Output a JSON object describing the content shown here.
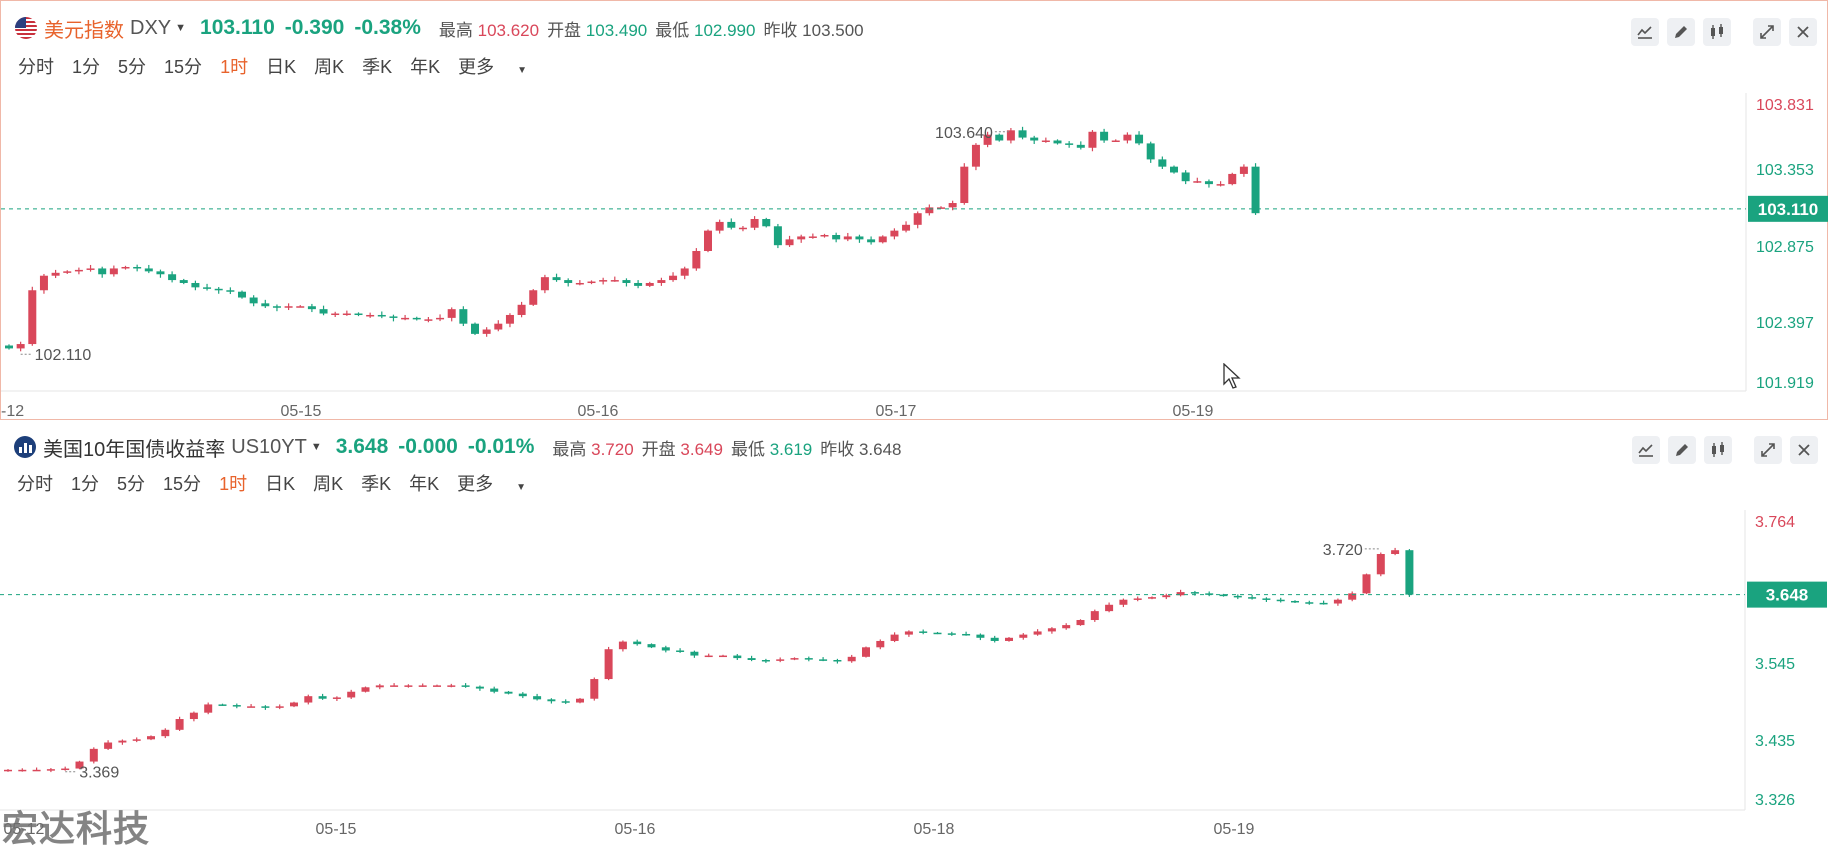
{
  "panels": [
    {
      "id": "dxy",
      "name": "美元指数",
      "code": "DXY",
      "price": "103.110",
      "change": "-0.390",
      "change_pct": "-0.38%",
      "stats": [
        {
          "label": "最高",
          "value": "103.620",
          "color": "red"
        },
        {
          "label": "开盘",
          "value": "103.490",
          "color": "green"
        },
        {
          "label": "最低",
          "value": "102.990",
          "color": "green"
        },
        {
          "label": "昨收",
          "value": "103.500",
          "color": "gray"
        }
      ]
    },
    {
      "id": "us10yt",
      "name": "美国10年国债收益率",
      "code": "US10YT",
      "price": "3.648",
      "change": "-0.000",
      "change_pct": "-0.01%",
      "stats": [
        {
          "label": "最高",
          "value": "3.720",
          "color": "red"
        },
        {
          "label": "开盘",
          "value": "3.649",
          "color": "red"
        },
        {
          "label": "最低",
          "value": "3.619",
          "color": "green"
        },
        {
          "label": "昨收",
          "value": "3.648",
          "color": "gray"
        }
      ]
    }
  ],
  "periods": [
    "分时",
    "1分",
    "5分",
    "15分",
    "1时",
    "日K",
    "周K",
    "季K",
    "年K",
    "更多"
  ],
  "active_period": "1时",
  "toolbar_icons": [
    "indicator-icon",
    "draw-pen-icon",
    "candle-type-icon",
    "expand-icon",
    "close-icon"
  ],
  "watermark": "宏达科技",
  "colors": {
    "up": "#d9475a",
    "down": "#1aa37f",
    "accent": "#e8632c",
    "grid": "#e6e6e6"
  },
  "chart_data": [
    {
      "type": "candlestick",
      "symbol": "DXY",
      "timeframe": "1时",
      "x_ticks": [
        "-12",
        "05-15",
        "05-16",
        "05-17",
        "05-19"
      ],
      "y_ticks": [
        "103.831",
        "103.353",
        "102.875",
        "102.397",
        "101.919"
      ],
      "y_range": [
        101.919,
        103.831
      ],
      "last_price": "103.110",
      "annotations": {
        "high": "103.640",
        "low": "102.110"
      },
      "closes": [
        102.15,
        102.18,
        102.55,
        102.65,
        102.67,
        102.68,
        102.69,
        102.7,
        102.66,
        102.7,
        102.71,
        102.7,
        102.68,
        102.66,
        102.62,
        102.6,
        102.57,
        102.56,
        102.55,
        102.54,
        102.5,
        102.46,
        102.44,
        102.43,
        102.44,
        102.44,
        102.42,
        102.39,
        102.39,
        102.39,
        102.38,
        102.38,
        102.37,
        102.36,
        102.36,
        102.35,
        102.35,
        102.36,
        102.42,
        102.32,
        102.25,
        102.28,
        102.32,
        102.38,
        102.45,
        102.55,
        102.64,
        102.62,
        102.6,
        102.6,
        102.61,
        102.62,
        102.62,
        102.6,
        102.58,
        102.6,
        102.62,
        102.65,
        102.7,
        102.82,
        102.96,
        103.02,
        102.98,
        102.98,
        103.04,
        102.99,
        102.86,
        102.9,
        102.92,
        102.92,
        102.93,
        102.9,
        102.92,
        102.9,
        102.88,
        102.92,
        102.96,
        103.0,
        103.08,
        103.12,
        103.12,
        103.15,
        103.4,
        103.55,
        103.62,
        103.58,
        103.65,
        103.6,
        103.58,
        103.58,
        103.56,
        103.55,
        103.53,
        103.64,
        103.58,
        103.58,
        103.62,
        103.56,
        103.45,
        103.4,
        103.36,
        103.3,
        103.3,
        103.28,
        103.28,
        103.35,
        103.4,
        103.08
      ],
      "notes": "hourly OHLC candles approximated from the image"
    },
    {
      "type": "candlestick",
      "symbol": "US10YT",
      "timeframe": "1时",
      "x_ticks": [
        "05-12",
        "05-15",
        "05-16",
        "05-18",
        "05-19"
      ],
      "y_ticks": [
        "3.764",
        "3.648",
        "3.545",
        "3.435",
        "3.326"
      ],
      "y_range": [
        3.326,
        3.764
      ],
      "last_price": "3.648",
      "annotations": {
        "high": "3.720",
        "low": "3.369"
      },
      "closes": [
        3.372,
        3.372,
        3.372,
        3.373,
        3.374,
        3.385,
        3.405,
        3.415,
        3.418,
        3.42,
        3.425,
        3.435,
        3.452,
        3.462,
        3.475,
        3.474,
        3.472,
        3.472,
        3.47,
        3.472,
        3.478,
        3.488,
        3.484,
        3.486,
        3.495,
        3.502,
        3.505,
        3.505,
        3.505,
        3.505,
        3.505,
        3.505,
        3.503,
        3.5,
        3.495,
        3.492,
        3.488,
        3.483,
        3.48,
        3.478,
        3.484,
        3.515,
        3.562,
        3.574,
        3.57,
        3.565,
        3.56,
        3.558,
        3.552,
        3.552,
        3.552,
        3.548,
        3.545,
        3.544,
        3.546,
        3.548,
        3.546,
        3.545,
        3.543,
        3.55,
        3.565,
        3.575,
        3.585,
        3.59,
        3.588,
        3.587,
        3.586,
        3.585,
        3.58,
        3.575,
        3.58,
        3.585,
        3.59,
        3.595,
        3.6,
        3.608,
        3.622,
        3.632,
        3.64,
        3.642,
        3.644,
        3.647,
        3.652,
        3.65,
        3.648,
        3.646,
        3.644,
        3.642,
        3.64,
        3.638,
        3.636,
        3.635,
        3.634,
        3.64,
        3.65,
        3.68,
        3.712,
        3.718,
        3.648
      ],
      "notes": "hourly OHLC candles approximated from the image"
    }
  ]
}
